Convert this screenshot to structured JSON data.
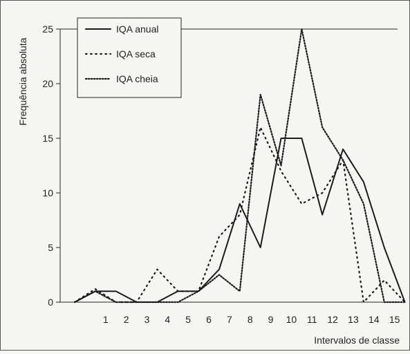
{
  "chart_data": {
    "type": "line",
    "title": "",
    "xlabel": "Intervalos de classe",
    "ylabel": "Frequência absoluta",
    "x": [
      0,
      1,
      2,
      3,
      4,
      5,
      6,
      7,
      8,
      9,
      10,
      11,
      12,
      13,
      14,
      15,
      16
    ],
    "x_tick_labels": [
      "1",
      "2",
      "3",
      "4",
      "5",
      "6",
      "7",
      "8",
      "9",
      "10",
      "11",
      "12",
      "13",
      "14",
      "15"
    ],
    "x_tick_positions": [
      1.5,
      2.5,
      3.5,
      4.5,
      5.5,
      6.5,
      7.5,
      8.5,
      9.5,
      10.5,
      11.5,
      12.5,
      13.5,
      14.5,
      15.5
    ],
    "xlim": [
      0,
      16.3
    ],
    "ylim": [
      0,
      25
    ],
    "y_ticks": [
      0,
      5,
      10,
      15,
      20,
      25
    ],
    "grid": false,
    "legend_position": "top-left",
    "series": [
      {
        "name": "IQA anual",
        "style": "solid",
        "color": "#1a1a1a",
        "values": [
          0,
          1,
          1,
          0,
          0,
          1,
          1,
          3,
          9,
          5,
          15,
          15,
          8,
          14,
          11,
          5,
          0
        ]
      },
      {
        "name": "IQA seca",
        "style": "dotted-sparse",
        "color": "#1a1a1a",
        "values": [
          0,
          1.2,
          0,
          0,
          3,
          1,
          1,
          6,
          8,
          16,
          12,
          9,
          10,
          13,
          0,
          2,
          0
        ]
      },
      {
        "name": "IQA cheia",
        "style": "dotted-dense",
        "color": "#1a1a1a",
        "values": [
          0,
          1,
          0,
          0,
          0,
          0,
          1,
          2.5,
          1,
          19,
          12.5,
          25,
          16,
          13,
          9,
          0,
          0
        ]
      }
    ]
  }
}
